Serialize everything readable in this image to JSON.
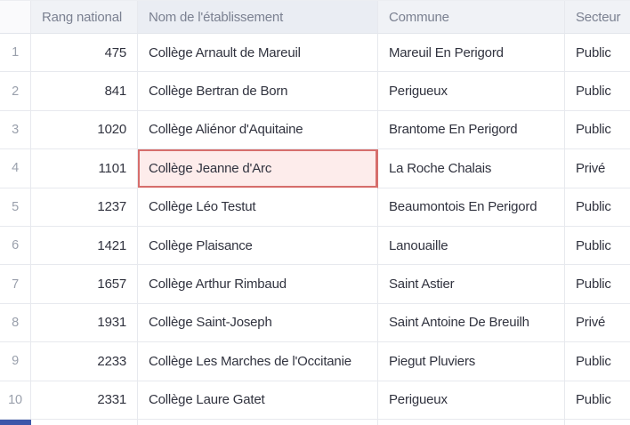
{
  "colors": {
    "header_background": "#f0f2f6",
    "header_selected_column_background": "#eaedf3",
    "corner_background": "#fafafc",
    "header_text": "#7b8191",
    "body_text": "#31333f",
    "row_index_text": "#9aa0ac",
    "grid_line": "#e7e9ee",
    "highlight_background": "#fdeceb",
    "highlight_border": "#d66e6c",
    "partial_row_marker": "#3c56a9"
  },
  "table": {
    "columns": [
      {
        "id": "rang",
        "label": "Rang national"
      },
      {
        "id": "nom",
        "label": "Nom de l'établissement"
      },
      {
        "id": "commune",
        "label": "Commune"
      },
      {
        "id": "secteur",
        "label": "Secteur"
      }
    ],
    "highlight": {
      "row": "4",
      "column": "nom"
    },
    "rows": [
      {
        "index": "1",
        "rang": "475",
        "nom": "Collège Arnault de Mareuil",
        "commune": "Mareuil En Perigord",
        "secteur": "Public"
      },
      {
        "index": "2",
        "rang": "841",
        "nom": "Collège Bertran de Born",
        "commune": "Perigueux",
        "secteur": "Public"
      },
      {
        "index": "3",
        "rang": "1020",
        "nom": "Collège Aliénor d'Aquitaine",
        "commune": "Brantome En Perigord",
        "secteur": "Public"
      },
      {
        "index": "4",
        "rang": "1101",
        "nom": "Collège Jeanne d'Arc",
        "commune": "La Roche Chalais",
        "secteur": "Privé"
      },
      {
        "index": "5",
        "rang": "1237",
        "nom": "Collège Léo Testut",
        "commune": "Beaumontois En Perigord",
        "secteur": "Public"
      },
      {
        "index": "6",
        "rang": "1421",
        "nom": "Collège Plaisance",
        "commune": "Lanouaille",
        "secteur": "Public"
      },
      {
        "index": "7",
        "rang": "1657",
        "nom": "Collège Arthur Rimbaud",
        "commune": "Saint Astier",
        "secteur": "Public"
      },
      {
        "index": "8",
        "rang": "1931",
        "nom": "Collège Saint-Joseph",
        "commune": "Saint Antoine De Breuilh",
        "secteur": "Privé"
      },
      {
        "index": "9",
        "rang": "2233",
        "nom": "Collège Les Marches de l'Occitanie",
        "commune": "Piegut Pluviers",
        "secteur": "Public"
      },
      {
        "index": "10",
        "rang": "2331",
        "nom": "Collège Laure Gatet",
        "commune": "Perigueux",
        "secteur": "Public"
      }
    ]
  }
}
